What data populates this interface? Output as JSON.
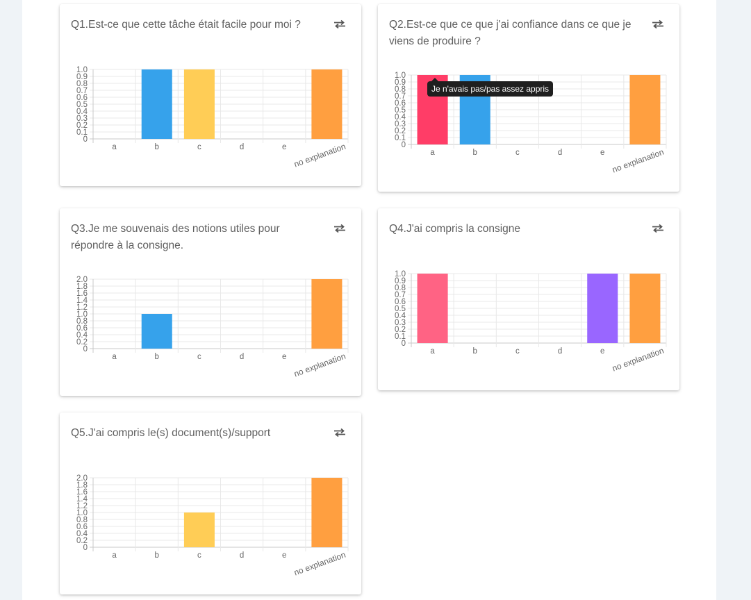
{
  "colors": {
    "a": "#ff3d67",
    "a_alt": "#ff6384",
    "b": "#36a2eb",
    "c": "#ffcd56",
    "e": "#9966ff",
    "no_explanation": "#ff9f40"
  },
  "icons": {
    "swap": "swap-horizontal-icon"
  },
  "tooltip": {
    "text": "Je n'avais pas/pas assez appris"
  },
  "chart_data": [
    {
      "type": "bar",
      "title": "Q1.Est-ce que cette tâche était facile pour moi ?",
      "categories": [
        "a",
        "b",
        "c",
        "d",
        "e",
        "no explanation"
      ],
      "values": [
        0,
        1,
        1,
        0,
        0,
        1
      ],
      "ylim": [
        0,
        1
      ],
      "yticks": [
        "0",
        "0.1",
        "0.2",
        "0.3",
        "0.4",
        "0.5",
        "0.6",
        "0.7",
        "0.8",
        "0.9",
        "1.0"
      ],
      "bar_colors": [
        "#ff3d67",
        "#36a2eb",
        "#ffcd56",
        "#4bc0c0",
        "#9966ff",
        "#ff9f40"
      ],
      "grid": true
    },
    {
      "type": "bar",
      "title": "Q2.Est-ce que ce que j'ai confiance dans ce que je viens de produire ?",
      "categories": [
        "a",
        "b",
        "c",
        "d",
        "e",
        "no explanation"
      ],
      "values": [
        1,
        1,
        0,
        0,
        0,
        1
      ],
      "ylim": [
        0,
        1
      ],
      "yticks": [
        "0",
        "0.1",
        "0.2",
        "0.3",
        "0.4",
        "0.5",
        "0.6",
        "0.7",
        "0.8",
        "0.9",
        "1.0"
      ],
      "bar_colors": [
        "#ff3d67",
        "#36a2eb",
        "#ffcd56",
        "#4bc0c0",
        "#9966ff",
        "#ff9f40"
      ],
      "grid": true
    },
    {
      "type": "bar",
      "title": "Q3.Je me souvenais des notions utiles pour répondre à la consigne.",
      "categories": [
        "a",
        "b",
        "c",
        "d",
        "e",
        "no explanation"
      ],
      "values": [
        0,
        1,
        0,
        0,
        0,
        2
      ],
      "ylim": [
        0,
        2
      ],
      "yticks": [
        "0",
        "0.2",
        "0.4",
        "0.6",
        "0.8",
        "1.0",
        "1.2",
        "1.4",
        "1.6",
        "1.8",
        "2.0"
      ],
      "bar_colors": [
        "#ff3d67",
        "#36a2eb",
        "#ffcd56",
        "#4bc0c0",
        "#9966ff",
        "#ff9f40"
      ],
      "grid": true
    },
    {
      "type": "bar",
      "title": "Q4.J'ai compris la consigne",
      "categories": [
        "a",
        "b",
        "c",
        "d",
        "e",
        "no explanation"
      ],
      "values": [
        1,
        0,
        0,
        0,
        1,
        1
      ],
      "ylim": [
        0,
        1
      ],
      "yticks": [
        "0",
        "0.1",
        "0.2",
        "0.3",
        "0.4",
        "0.5",
        "0.6",
        "0.7",
        "0.8",
        "0.9",
        "1.0"
      ],
      "bar_colors": [
        "#ff6384",
        "#36a2eb",
        "#ffcd56",
        "#4bc0c0",
        "#9966ff",
        "#ff9f40"
      ],
      "grid": true
    },
    {
      "type": "bar",
      "title": "Q5.J'ai compris le(s) document(s)/support",
      "categories": [
        "a",
        "b",
        "c",
        "d",
        "e",
        "no explanation"
      ],
      "values": [
        0,
        0,
        1,
        0,
        0,
        2
      ],
      "ylim": [
        0,
        2
      ],
      "yticks": [
        "0",
        "0.2",
        "0.4",
        "0.6",
        "0.8",
        "1.0",
        "1.2",
        "1.4",
        "1.6",
        "1.8",
        "2.0"
      ],
      "bar_colors": [
        "#ff3d67",
        "#36a2eb",
        "#ffcd56",
        "#4bc0c0",
        "#9966ff",
        "#ff9f40"
      ],
      "grid": true
    }
  ]
}
